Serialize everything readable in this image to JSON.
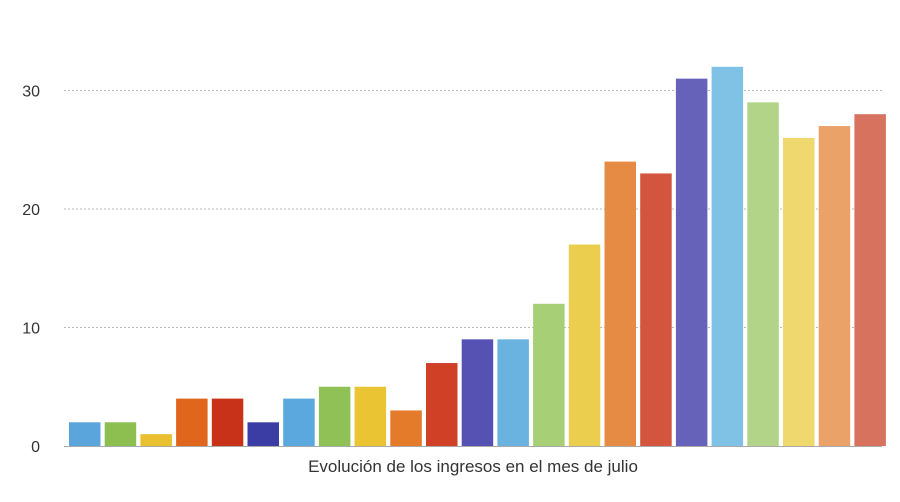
{
  "chart_data": {
    "type": "bar",
    "title": "",
    "xlabel": "Evolución de los ingresos en el mes de julio",
    "ylabel": "",
    "ylim": [
      0,
      35
    ],
    "yticks": [
      0,
      10,
      20,
      30
    ],
    "grid": true,
    "values": [
      2,
      2,
      1,
      4,
      4,
      2,
      4,
      5,
      5,
      3,
      7,
      9,
      9,
      12,
      17,
      24,
      23,
      31,
      32,
      29,
      26,
      27,
      28
    ],
    "colors": [
      "#5aa5dc",
      "#8cbf4f",
      "#e8c030",
      "#e0661e",
      "#c83219",
      "#3b3ca4",
      "#5aa8de",
      "#8fc156",
      "#eac432",
      "#e37b2a",
      "#cf4027",
      "#5552b4",
      "#6ab2e0",
      "#a6cf76",
      "#ecce4e",
      "#e58b44",
      "#d3553e",
      "#6662ba",
      "#80c2e6",
      "#b2d489",
      "#efd86d",
      "#eba268",
      "#d6725e"
    ]
  }
}
